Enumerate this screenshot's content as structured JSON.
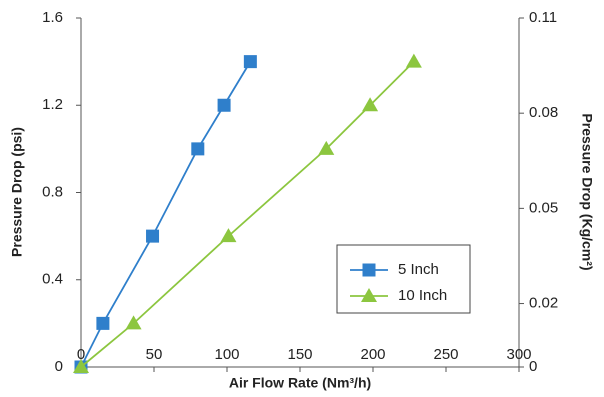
{
  "chart_data": {
    "type": "line",
    "x_label": "Air Flow Rate (Nm³/h)",
    "y_label": "Pressure Drop (psi)",
    "y2_label": "Pressure Drop (Kg/cm²)",
    "xlim": [
      0,
      300
    ],
    "xticks": [
      0,
      50,
      100,
      150,
      200,
      250,
      300
    ],
    "ylim": [
      0,
      1.6
    ],
    "yticks": [
      0.0,
      0.4,
      0.8,
      1.2,
      1.6
    ],
    "y2lim": [
      0,
      0.11
    ],
    "y2ticks": [
      0.0,
      0.02,
      0.05,
      0.08,
      0.11
    ],
    "grid": false,
    "legend": "lower right",
    "series": [
      {
        "name": "5 Inch",
        "color": "#2f7fcb",
        "marker": "square",
        "x": [
          0,
          15,
          49,
          80,
          98,
          116
        ],
        "values": [
          0,
          0.2,
          0.6,
          1.0,
          1.2,
          1.4
        ]
      },
      {
        "name": "10 Inch",
        "color": "#8cc63f",
        "marker": "triangle",
        "x": [
          0,
          36,
          101,
          168,
          198,
          228
        ],
        "values": [
          0,
          0.2,
          0.6,
          1.0,
          1.2,
          1.4
        ]
      }
    ]
  }
}
